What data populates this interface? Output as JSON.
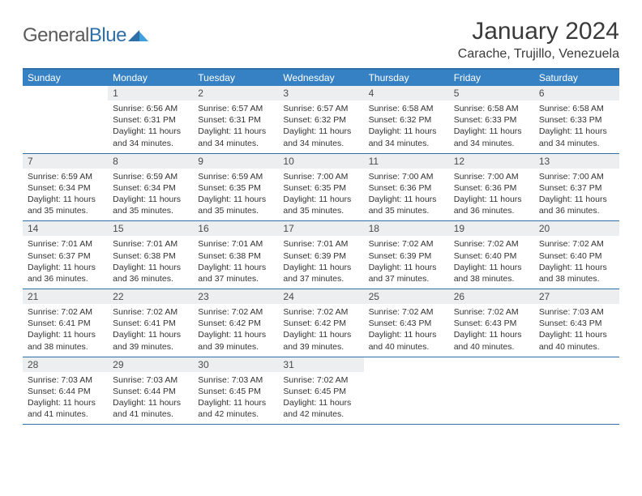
{
  "logo": {
    "general": "General",
    "blue": "Blue"
  },
  "title": "January 2024",
  "location": "Carache, Trujillo, Venezuela",
  "colors": {
    "accent": "#2f6fa8",
    "header_bg": "#3681c3",
    "daynum_bg": "#eceeef",
    "text": "#333333"
  },
  "day_headers": [
    "Sunday",
    "Monday",
    "Tuesday",
    "Wednesday",
    "Thursday",
    "Friday",
    "Saturday"
  ],
  "weeks": [
    [
      null,
      {
        "n": "1",
        "sr": "Sunrise: 6:56 AM",
        "ss": "Sunset: 6:31 PM",
        "d1": "Daylight: 11 hours",
        "d2": "and 34 minutes."
      },
      {
        "n": "2",
        "sr": "Sunrise: 6:57 AM",
        "ss": "Sunset: 6:31 PM",
        "d1": "Daylight: 11 hours",
        "d2": "and 34 minutes."
      },
      {
        "n": "3",
        "sr": "Sunrise: 6:57 AM",
        "ss": "Sunset: 6:32 PM",
        "d1": "Daylight: 11 hours",
        "d2": "and 34 minutes."
      },
      {
        "n": "4",
        "sr": "Sunrise: 6:58 AM",
        "ss": "Sunset: 6:32 PM",
        "d1": "Daylight: 11 hours",
        "d2": "and 34 minutes."
      },
      {
        "n": "5",
        "sr": "Sunrise: 6:58 AM",
        "ss": "Sunset: 6:33 PM",
        "d1": "Daylight: 11 hours",
        "d2": "and 34 minutes."
      },
      {
        "n": "6",
        "sr": "Sunrise: 6:58 AM",
        "ss": "Sunset: 6:33 PM",
        "d1": "Daylight: 11 hours",
        "d2": "and 34 minutes."
      }
    ],
    [
      {
        "n": "7",
        "sr": "Sunrise: 6:59 AM",
        "ss": "Sunset: 6:34 PM",
        "d1": "Daylight: 11 hours",
        "d2": "and 35 minutes."
      },
      {
        "n": "8",
        "sr": "Sunrise: 6:59 AM",
        "ss": "Sunset: 6:34 PM",
        "d1": "Daylight: 11 hours",
        "d2": "and 35 minutes."
      },
      {
        "n": "9",
        "sr": "Sunrise: 6:59 AM",
        "ss": "Sunset: 6:35 PM",
        "d1": "Daylight: 11 hours",
        "d2": "and 35 minutes."
      },
      {
        "n": "10",
        "sr": "Sunrise: 7:00 AM",
        "ss": "Sunset: 6:35 PM",
        "d1": "Daylight: 11 hours",
        "d2": "and 35 minutes."
      },
      {
        "n": "11",
        "sr": "Sunrise: 7:00 AM",
        "ss": "Sunset: 6:36 PM",
        "d1": "Daylight: 11 hours",
        "d2": "and 35 minutes."
      },
      {
        "n": "12",
        "sr": "Sunrise: 7:00 AM",
        "ss": "Sunset: 6:36 PM",
        "d1": "Daylight: 11 hours",
        "d2": "and 36 minutes."
      },
      {
        "n": "13",
        "sr": "Sunrise: 7:00 AM",
        "ss": "Sunset: 6:37 PM",
        "d1": "Daylight: 11 hours",
        "d2": "and 36 minutes."
      }
    ],
    [
      {
        "n": "14",
        "sr": "Sunrise: 7:01 AM",
        "ss": "Sunset: 6:37 PM",
        "d1": "Daylight: 11 hours",
        "d2": "and 36 minutes."
      },
      {
        "n": "15",
        "sr": "Sunrise: 7:01 AM",
        "ss": "Sunset: 6:38 PM",
        "d1": "Daylight: 11 hours",
        "d2": "and 36 minutes."
      },
      {
        "n": "16",
        "sr": "Sunrise: 7:01 AM",
        "ss": "Sunset: 6:38 PM",
        "d1": "Daylight: 11 hours",
        "d2": "and 37 minutes."
      },
      {
        "n": "17",
        "sr": "Sunrise: 7:01 AM",
        "ss": "Sunset: 6:39 PM",
        "d1": "Daylight: 11 hours",
        "d2": "and 37 minutes."
      },
      {
        "n": "18",
        "sr": "Sunrise: 7:02 AM",
        "ss": "Sunset: 6:39 PM",
        "d1": "Daylight: 11 hours",
        "d2": "and 37 minutes."
      },
      {
        "n": "19",
        "sr": "Sunrise: 7:02 AM",
        "ss": "Sunset: 6:40 PM",
        "d1": "Daylight: 11 hours",
        "d2": "and 38 minutes."
      },
      {
        "n": "20",
        "sr": "Sunrise: 7:02 AM",
        "ss": "Sunset: 6:40 PM",
        "d1": "Daylight: 11 hours",
        "d2": "and 38 minutes."
      }
    ],
    [
      {
        "n": "21",
        "sr": "Sunrise: 7:02 AM",
        "ss": "Sunset: 6:41 PM",
        "d1": "Daylight: 11 hours",
        "d2": "and 38 minutes."
      },
      {
        "n": "22",
        "sr": "Sunrise: 7:02 AM",
        "ss": "Sunset: 6:41 PM",
        "d1": "Daylight: 11 hours",
        "d2": "and 39 minutes."
      },
      {
        "n": "23",
        "sr": "Sunrise: 7:02 AM",
        "ss": "Sunset: 6:42 PM",
        "d1": "Daylight: 11 hours",
        "d2": "and 39 minutes."
      },
      {
        "n": "24",
        "sr": "Sunrise: 7:02 AM",
        "ss": "Sunset: 6:42 PM",
        "d1": "Daylight: 11 hours",
        "d2": "and 39 minutes."
      },
      {
        "n": "25",
        "sr": "Sunrise: 7:02 AM",
        "ss": "Sunset: 6:43 PM",
        "d1": "Daylight: 11 hours",
        "d2": "and 40 minutes."
      },
      {
        "n": "26",
        "sr": "Sunrise: 7:02 AM",
        "ss": "Sunset: 6:43 PM",
        "d1": "Daylight: 11 hours",
        "d2": "and 40 minutes."
      },
      {
        "n": "27",
        "sr": "Sunrise: 7:03 AM",
        "ss": "Sunset: 6:43 PM",
        "d1": "Daylight: 11 hours",
        "d2": "and 40 minutes."
      }
    ],
    [
      {
        "n": "28",
        "sr": "Sunrise: 7:03 AM",
        "ss": "Sunset: 6:44 PM",
        "d1": "Daylight: 11 hours",
        "d2": "and 41 minutes."
      },
      {
        "n": "29",
        "sr": "Sunrise: 7:03 AM",
        "ss": "Sunset: 6:44 PM",
        "d1": "Daylight: 11 hours",
        "d2": "and 41 minutes."
      },
      {
        "n": "30",
        "sr": "Sunrise: 7:03 AM",
        "ss": "Sunset: 6:45 PM",
        "d1": "Daylight: 11 hours",
        "d2": "and 42 minutes."
      },
      {
        "n": "31",
        "sr": "Sunrise: 7:02 AM",
        "ss": "Sunset: 6:45 PM",
        "d1": "Daylight: 11 hours",
        "d2": "and 42 minutes."
      },
      null,
      null,
      null
    ]
  ]
}
